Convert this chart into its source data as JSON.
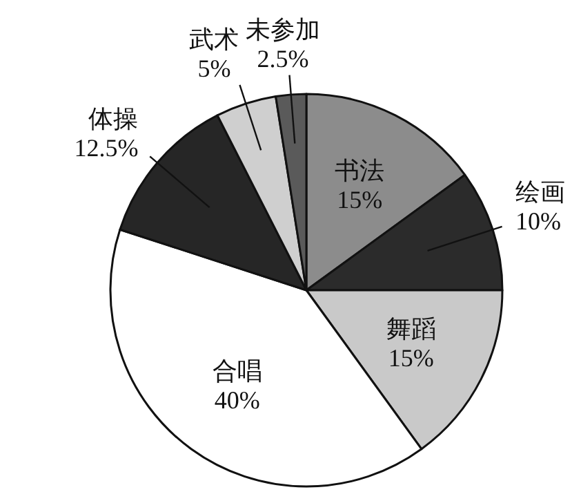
{
  "chart_data": {
    "type": "pie",
    "categories": [
      "书法",
      "绘画",
      "舞蹈",
      "合唱",
      "体操",
      "武术",
      "未参加"
    ],
    "values": [
      15,
      10,
      15,
      40,
      12.5,
      5,
      2.5
    ],
    "value_labels": [
      "15%",
      "10%",
      "15%",
      "40%",
      "12.5%",
      "5%",
      "2.5%"
    ],
    "colors": [
      "#8c8c8c",
      "#2b2b2b",
      "#c9c9c9",
      "#ffffff",
      "#262626",
      "#cfcfcf",
      "#5a5a5a"
    ]
  }
}
